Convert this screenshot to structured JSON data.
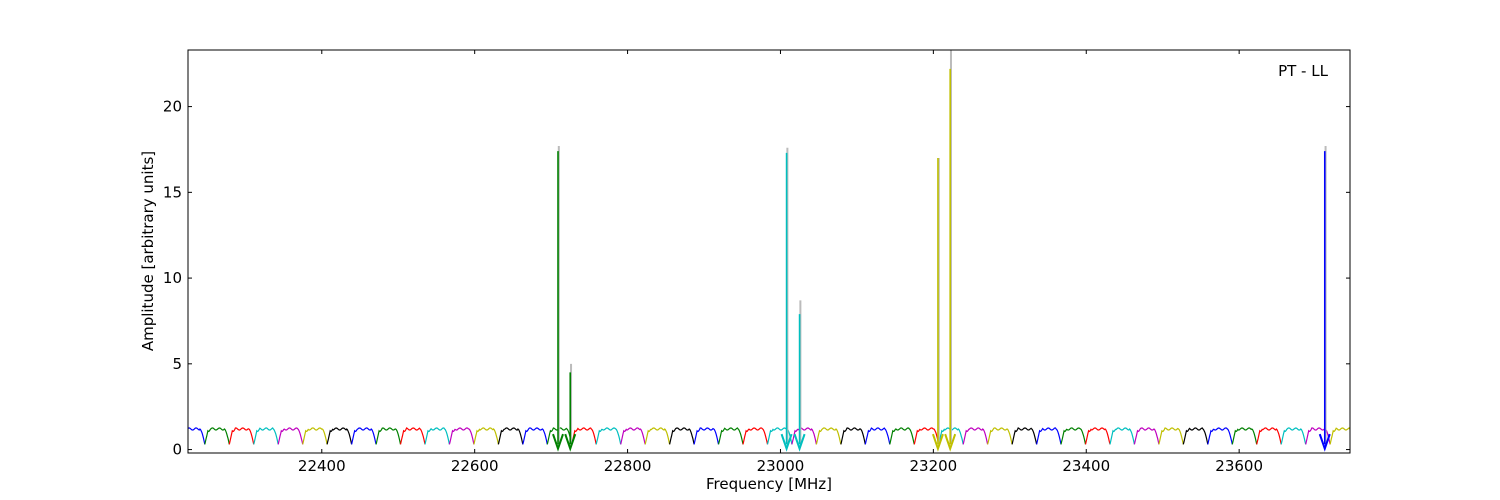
{
  "chart_data": {
    "type": "line",
    "title": "",
    "annotation": "PT - LL",
    "xlabel": "Frequency [MHz]",
    "ylabel": "Amplitude [arbitrary units]",
    "xlim": [
      22225,
      23745
    ],
    "ylim": [
      -0.2,
      23.3
    ],
    "xticks": [
      22400,
      22600,
      22800,
      23000,
      23200,
      23400,
      23600
    ],
    "yticks": [
      0,
      5,
      10,
      15,
      20
    ],
    "grid": false,
    "legend": "none",
    "colors": [
      "#0000ff",
      "#008000",
      "#ff0000",
      "#00bfbf",
      "#bf00bf",
      "#bfbf00",
      "#000000"
    ],
    "segment_width_mhz": 32,
    "baseline_level": 1.2,
    "dip_level": 0.3,
    "peaks": [
      {
        "x": 22709,
        "y": 17.4,
        "ghost": 17.7,
        "color": "#008000"
      },
      {
        "x": 22725,
        "y": 4.5,
        "ghost": 5.0,
        "color": "#008000"
      },
      {
        "x": 23008,
        "y": 17.3,
        "ghost": 17.6,
        "color": "#00bfbf"
      },
      {
        "x": 23025,
        "y": 7.9,
        "ghost": 8.7,
        "color": "#00bfbf"
      },
      {
        "x": 23206,
        "y": 17.0,
        "ghost": 17.0,
        "color": "#bfbf00"
      },
      {
        "x": 23222,
        "y": 22.2,
        "ghost": 23.3,
        "color": "#bfbf00"
      },
      {
        "x": 23712,
        "y": 17.4,
        "ghost": 17.7,
        "color": "#0000ff"
      }
    ]
  }
}
